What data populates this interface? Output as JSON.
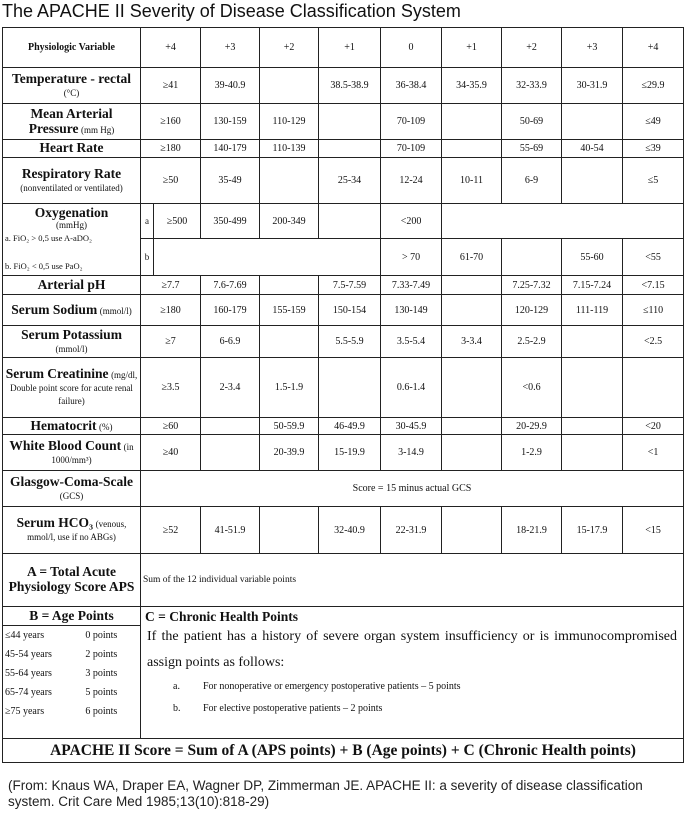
{
  "title": "The APACHE II Severity of Disease Classification System",
  "table": {
    "header": [
      "Physiologic Variable",
      "+4",
      "+3",
      "+2",
      "+1",
      "0",
      "+1",
      "+2",
      "+3",
      "+4"
    ],
    "rows": [
      {
        "variable": "Temperature - rectal",
        "unit": "(°C)",
        "values": [
          "≥41",
          "39-40.9",
          null,
          "38.5-38.9",
          "36-38.4",
          "34-35.9",
          "32-33.9",
          "30-31.9",
          "≤29.9"
        ]
      },
      {
        "variable": "Mean Arterial Pressure",
        "unit": "(mm Hg)",
        "values": [
          "≥160",
          "130-159",
          "110-129",
          null,
          "70-109",
          null,
          "50-69",
          null,
          "≤49"
        ]
      },
      {
        "variable": "Heart Rate",
        "values": [
          "≥180",
          "140-179",
          "110-139",
          null,
          "70-109",
          null,
          "55-69",
          "40-54",
          "≤39"
        ]
      },
      {
        "variable": "Respiratory Rate",
        "unit": "(nonventilated or ventilated)",
        "values": [
          "≥50",
          "35-49",
          null,
          "25-34",
          "12-24",
          "10-11",
          "6-9",
          null,
          "≤5"
        ]
      },
      {
        "variable": "Oxygenation",
        "unit": "(mmHg)",
        "notes": [
          "a. FiO₂ > 0,5 use A-aDO₂",
          "b. FiO₂ < 0,5 use PaO₂"
        ],
        "subrows": [
          {
            "marker": "a",
            "values": [
              "≥500",
              "350-499",
              "200-349",
              null,
              "<200",
              null,
              null,
              null,
              null
            ]
          },
          {
            "marker": "b",
            "values": [
              null,
              null,
              null,
              null,
              "> 70",
              "61-70",
              null,
              "55-60",
              "<55"
            ]
          }
        ]
      },
      {
        "variable": "Arterial pH",
        "values": [
          "≥7.7",
          "7.6-7.69",
          null,
          "7.5-7.59",
          "7.33-7.49",
          null,
          "7.25-7.32",
          "7.15-7.24",
          "<7.15"
        ]
      },
      {
        "variable": "Serum Sodium",
        "unit": "(mmol/l)",
        "values": [
          "≥180",
          "160-179",
          "155-159",
          "150-154",
          "130-149",
          null,
          "120-129",
          "111-119",
          "≤110"
        ]
      },
      {
        "variable": "Serum Potassium",
        "unit": "(mmol/l)",
        "values": [
          "≥7",
          "6-6.9",
          null,
          "5.5-5.9",
          "3.5-5.4",
          "3-3.4",
          "2.5-2.9",
          null,
          "<2.5"
        ]
      },
      {
        "variable": "Serum Creatinine",
        "unit": "(mg/dl, Double point score for acute renal failure)",
        "values": [
          "≥3.5",
          "2-3.4",
          "1.5-1.9",
          null,
          "0.6-1.4",
          null,
          "<0.6",
          null,
          null
        ]
      },
      {
        "variable": "Hematocrit",
        "unit": "(%)",
        "values": [
          "≥60",
          null,
          "50-59.9",
          "46-49.9",
          "30-45.9",
          null,
          "20-29.9",
          null,
          "<20"
        ]
      },
      {
        "variable": "White Blood Count",
        "unit": "(in 1000/mm³)",
        "values": [
          "≥40",
          null,
          "20-39.9",
          "15-19.9",
          "3-14.9",
          null,
          "1-2.9",
          null,
          "<1"
        ]
      },
      {
        "variable": "Glasgow-Coma-Scale",
        "unit": "(GCS)",
        "span": "Score = 15 minus actual GCS"
      },
      {
        "variable": "Serum HCO₃",
        "unit": "(venous, mmol/l, use if no ABGs)",
        "values": [
          "≥52",
          "41-51.9",
          null,
          "32-40.9",
          "22-31.9",
          null,
          "18-21.9",
          "15-17.9",
          "<15"
        ]
      },
      {
        "variable": "A = Total Acute Physiology Score APS",
        "text": "Sum of the 12 individual variable points"
      }
    ],
    "age_points": {
      "title": "B = Age Points",
      "rows": [
        [
          "≤44 years",
          "0 points"
        ],
        [
          "45-54 years",
          "2 points"
        ],
        [
          "55-64 years",
          "3 points"
        ],
        [
          "65-74 years",
          "5 points"
        ],
        [
          "≥75 years",
          "6 points"
        ]
      ]
    },
    "chronic_health": {
      "title": "C = Chronic Health Points",
      "text": "If the patient has a history of severe organ system insufficiency or is immunocompromised assign points as follows:",
      "items": [
        {
          "marker": "a.",
          "text": "For nonoperative or emergency postoperative patients – 5 points"
        },
        {
          "marker": "b.",
          "text": "For elective postoperative patients – 2 points"
        }
      ]
    },
    "total": "APACHE II Score = Sum of A (APS points) + B (Age points) + C (Chronic Health points)"
  },
  "source": "(From: Knaus WA, Draper EA, Wagner DP, Zimmerman JE. APACHE II: a severity of disease classification system. Crit Care Med 1985;13(10):818-29)"
}
